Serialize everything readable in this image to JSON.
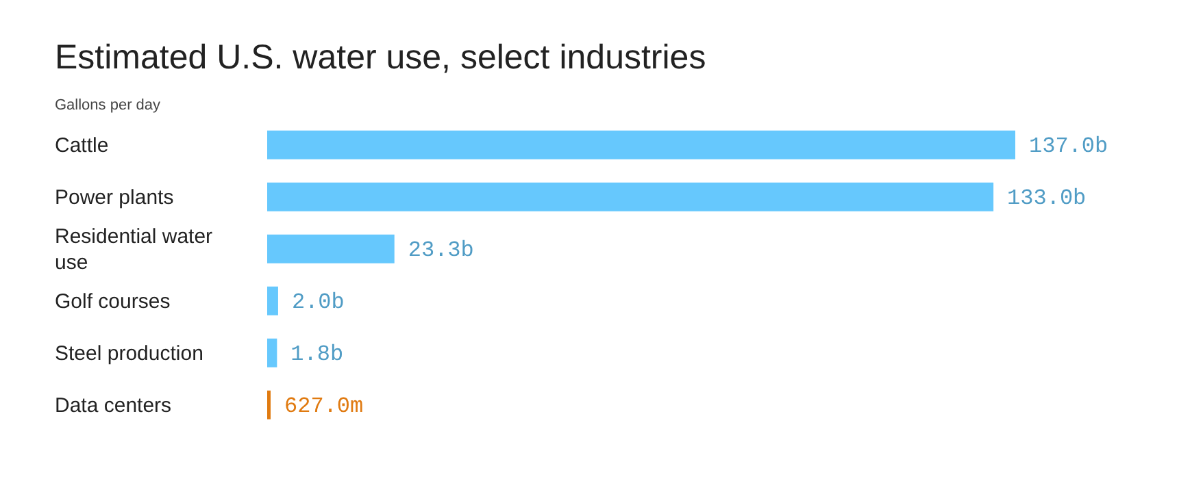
{
  "chart_data": {
    "type": "bar",
    "orientation": "horizontal",
    "title": "Estimated U.S. water use, select industries",
    "subtitle": "Gallons per day",
    "categories": [
      "Cattle",
      "Power plants",
      "Residential water use",
      "Golf courses",
      "Steel production",
      "Data centers"
    ],
    "values": [
      137000000000,
      133000000000,
      23300000000,
      2000000000,
      1800000000,
      627000000
    ],
    "value_labels": [
      "137.0b",
      "133.0b",
      "23.3b",
      "2.0b",
      "1.8b",
      "627.0m"
    ],
    "colors": [
      "#66c8fd",
      "#66c8fd",
      "#66c8fd",
      "#66c8fd",
      "#66c8fd",
      "#e07a10"
    ],
    "grid": false,
    "legend": false
  }
}
